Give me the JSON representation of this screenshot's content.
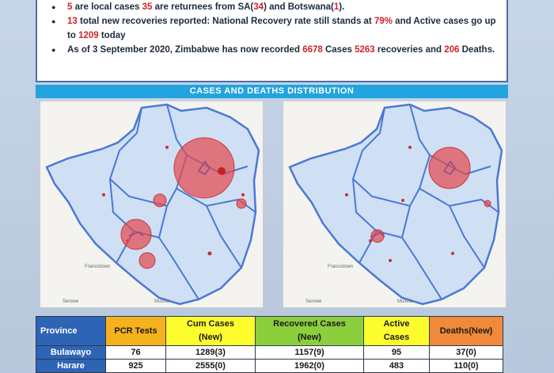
{
  "bullets": {
    "b1": {
      "n1": "5",
      "t1": " are local cases ",
      "n2": "35",
      "t2": " are returnees from SA(",
      "n3": "34",
      "t3": ") and Botswana(",
      "n4": "1",
      "t4": ")."
    },
    "b2": {
      "n1": "13",
      "t1": " total new recoveries reported: National Recovery rate still stands at ",
      "n2": "79%",
      "t2": " and Active cases go up to ",
      "n3": "1209",
      "t3": " today"
    },
    "b3": {
      "t1": "As of 3 September 2020, Zimbabwe has now recorded ",
      "n1": "6678",
      "t2": " Cases ",
      "n2": "5263",
      "t3": " recoveries and ",
      "n3": "206",
      "t4": " Deaths."
    }
  },
  "distribution": {
    "title": "CASES AND DEATHS DISTRIBUTION",
    "left_map_name": "cases-map",
    "right_map_name": "deaths-map",
    "labels": {
      "francistown": "Francistown",
      "serowe": "Serowe",
      "musina": "Musina"
    }
  },
  "table": {
    "headers": {
      "province": "Province",
      "pcr": "PCR Tests",
      "cum_a": "Cum Cases",
      "cum_b": "(New)",
      "rec": "Recovered Cases",
      "rec_b": "(New)",
      "act_a": "Active",
      "act_b": "Cases",
      "deaths": "Deaths(New)"
    },
    "rows": [
      {
        "province": "Bulawayo",
        "pcr": "76",
        "cum": "1289(3)",
        "rec": "1157(9)",
        "act": "95",
        "deaths": "37(0)"
      },
      {
        "province": "Harare",
        "pcr": "925",
        "cum": "2555(0)",
        "rec": "1962(0)",
        "act": "483",
        "deaths": "110(0)"
      }
    ]
  },
  "colors": {
    "header_blue": "#22a4de",
    "highlight_red": "#d0232a",
    "map_fill": "#cfe0f4",
    "border_blue": "#4a78d6",
    "bubble": "#e34a4f"
  }
}
